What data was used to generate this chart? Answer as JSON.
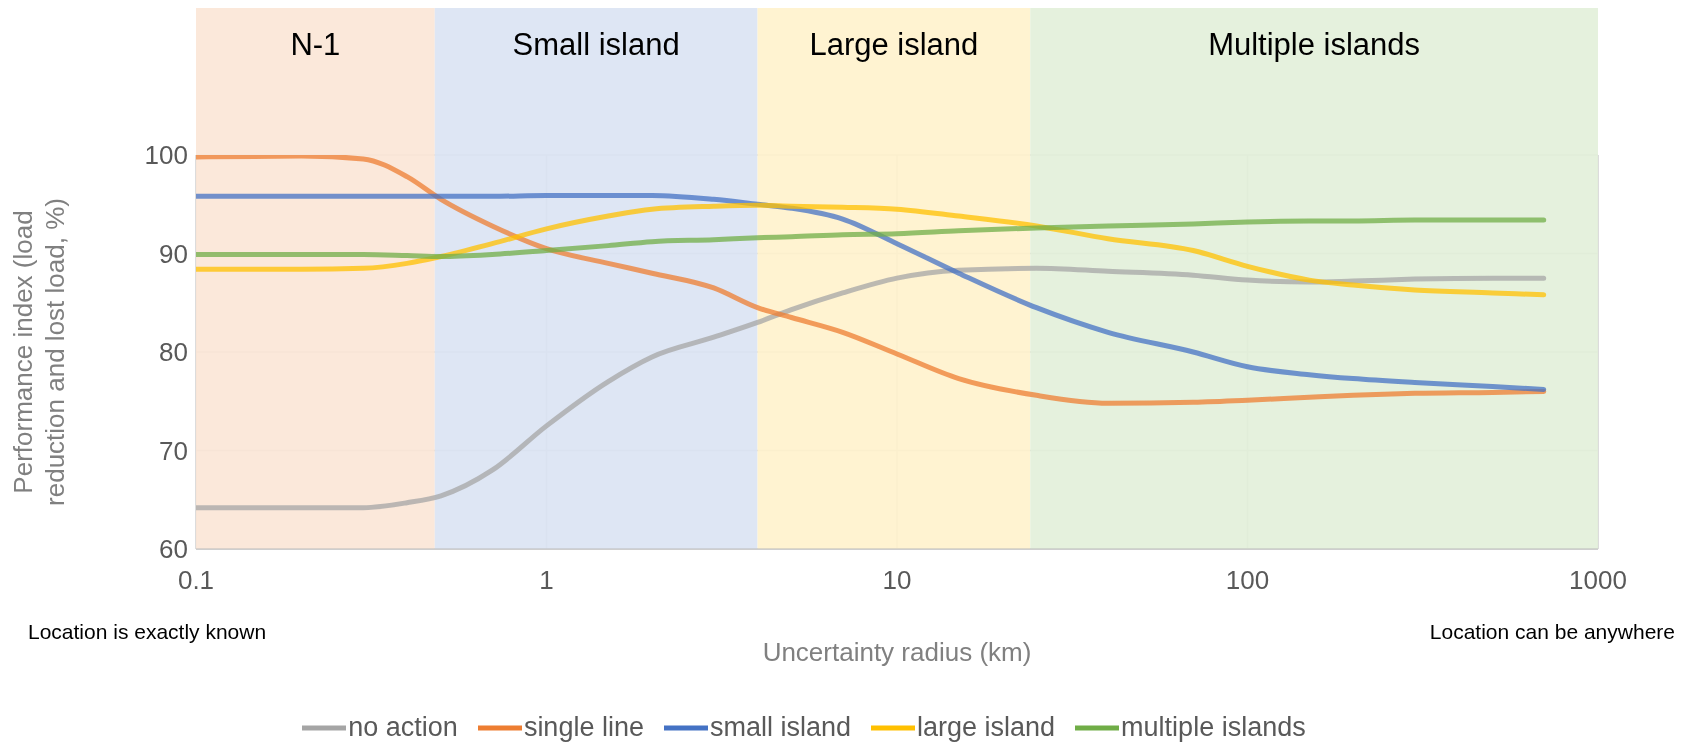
{
  "chart_data": {
    "type": "line",
    "xlabel": "Uncertainty radius (km)",
    "ylabel": "Performance index (load reduction and lost load, %)",
    "annotations": [
      "Location is exactly known",
      "Location can be anywhere"
    ],
    "x": [
      0.1,
      0.2,
      0.3,
      0.4,
      0.5,
      0.7,
      1,
      1.5,
      2,
      3,
      4,
      5,
      7,
      10,
      15,
      25,
      40,
      70,
      100,
      150,
      200,
      300,
      500,
      700
    ],
    "series": [
      {
        "name": "no action",
        "color": "#a5a5a5",
        "values": [
          64.2,
          64.2,
          64.2,
          64.7,
          65.4,
          68,
          72.5,
          77,
          79.5,
          81.5,
          83,
          84.3,
          86,
          87.5,
          88.3,
          88.5,
          88.2,
          87.8,
          87.3,
          87.1,
          87.2,
          87.4,
          87.5,
          87.5
        ]
      },
      {
        "name": "single line",
        "color": "#ed7d31",
        "values": [
          99.8,
          99.9,
          99.6,
          97.8,
          95.5,
          92.8,
          90.5,
          89,
          88,
          86.5,
          84.5,
          83.5,
          82,
          79.8,
          77.3,
          75.6,
          74.8,
          74.9,
          75.1,
          75.4,
          75.6,
          75.8,
          75.9,
          76
        ]
      },
      {
        "name": "small island",
        "color": "#4472c4",
        "values": [
          95.8,
          95.8,
          95.8,
          95.8,
          95.8,
          95.8,
          95.9,
          95.9,
          95.9,
          95.5,
          95,
          94.6,
          93.5,
          91,
          88,
          84.5,
          82,
          80,
          78.5,
          77.7,
          77.3,
          76.9,
          76.5,
          76.2
        ]
      },
      {
        "name": "large island",
        "color": "#ffc000",
        "values": [
          88.4,
          88.4,
          88.5,
          89,
          89.7,
          91,
          92.5,
          93.8,
          94.5,
          94.8,
          94.9,
          94.8,
          94.7,
          94.5,
          93.8,
          92.8,
          91.5,
          90.3,
          88.7,
          87.3,
          86.8,
          86.3,
          86,
          85.8
        ]
      },
      {
        "name": "multiple islands",
        "color": "#70ad47",
        "values": [
          89.9,
          89.9,
          89.9,
          89.8,
          89.7,
          89.9,
          90.3,
          90.8,
          91.2,
          91.4,
          91.6,
          91.7,
          91.9,
          92,
          92.3,
          92.6,
          92.8,
          93,
          93.2,
          93.3,
          93.3,
          93.4,
          93.4,
          93.4
        ]
      }
    ],
    "xlim": [
      0.1,
      1000
    ],
    "xticks": [
      0.1,
      1,
      10,
      100,
      1000
    ],
    "ylim": [
      60,
      100
    ],
    "yticks": [
      60,
      70,
      80,
      90,
      100
    ],
    "log": "x",
    "grid": true,
    "legend": "bottom",
    "bands": [
      {
        "axis": "x",
        "from": 0.1,
        "to": 0.48,
        "label": "N-1",
        "color": "#fbe5d6"
      },
      {
        "axis": "x",
        "from": 0.48,
        "to": 4,
        "label": "Small island",
        "color": "#dae3f3"
      },
      {
        "axis": "x",
        "from": 4,
        "to": 24,
        "label": "Large island",
        "color": "#fff2cc"
      },
      {
        "axis": "x",
        "from": 24,
        "to": 1000,
        "label": "Multiple islands",
        "color": "#e2f0d9"
      }
    ]
  }
}
